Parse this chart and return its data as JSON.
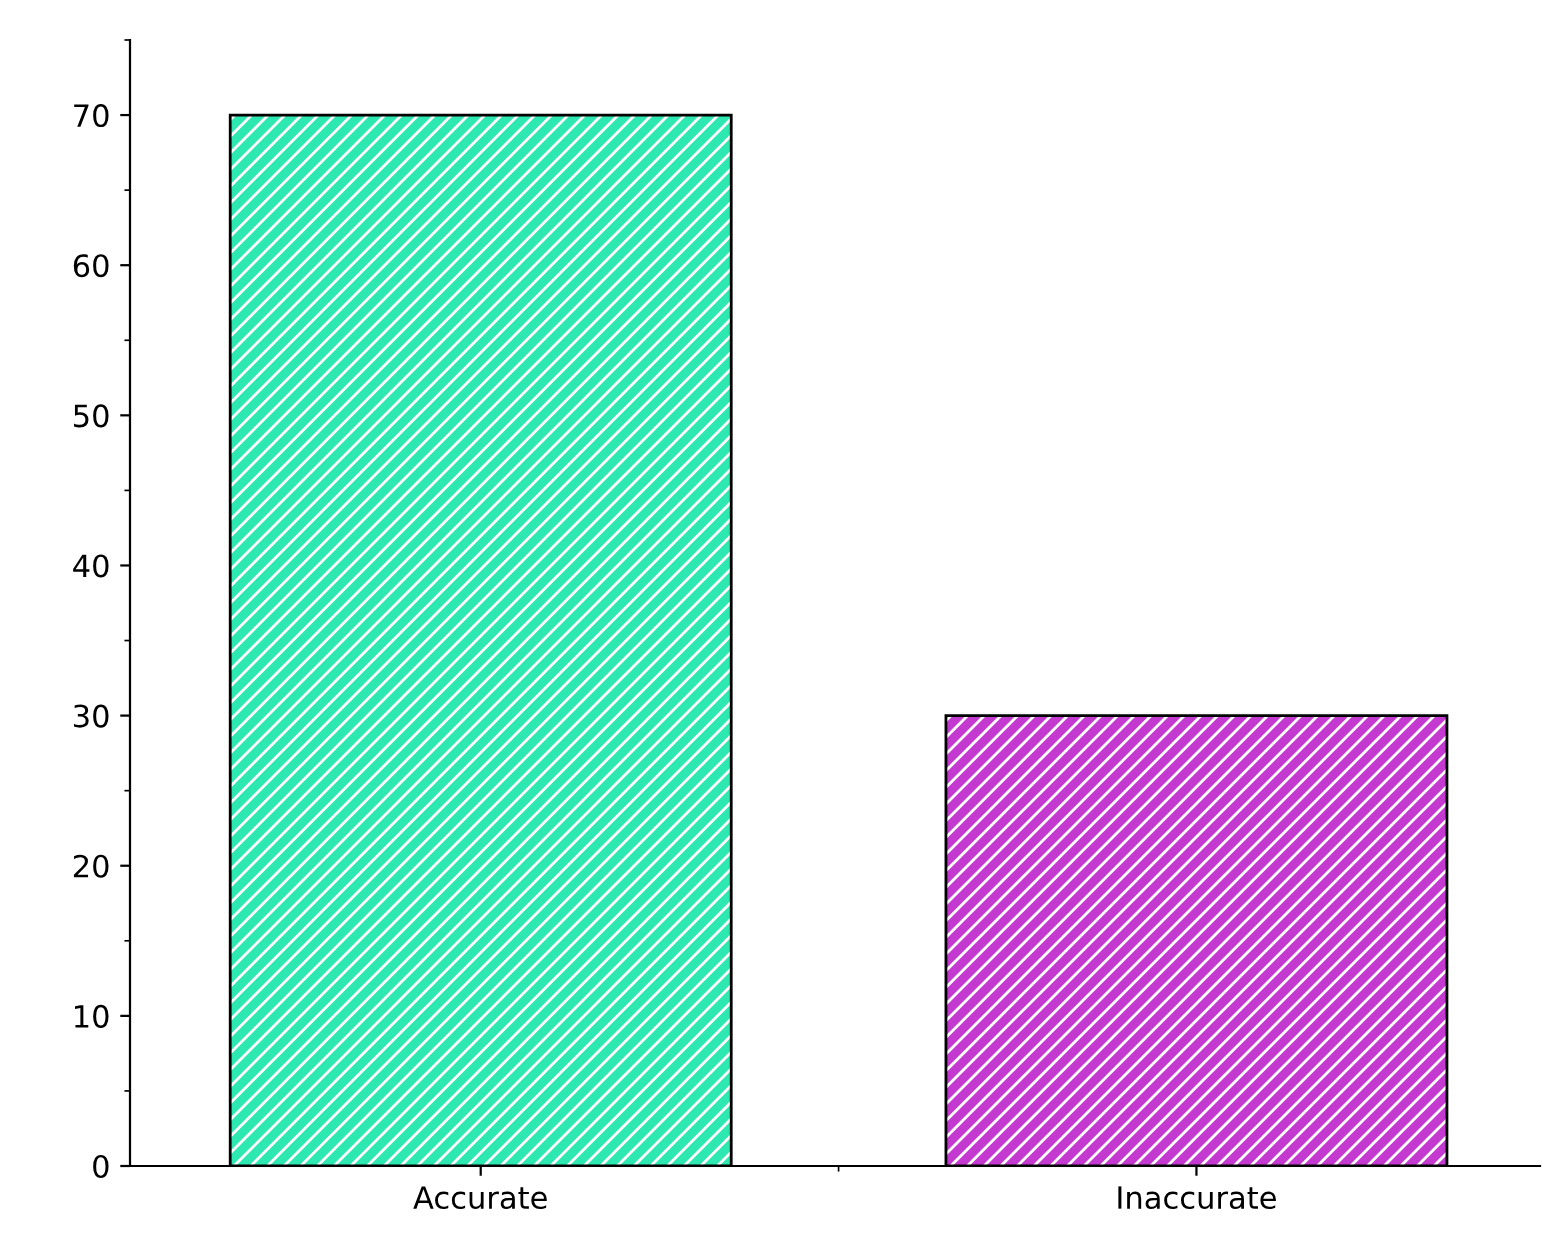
{
  "chart_data": {
    "type": "bar",
    "categories": [
      "Accurate",
      "Inaccurate"
    ],
    "values": [
      70,
      30
    ],
    "colors": [
      "#2ee8b2",
      "#c43ad0"
    ],
    "ylim": [
      0,
      75
    ],
    "yticks": [
      0,
      10,
      20,
      30,
      40,
      50,
      60,
      70
    ],
    "grid": false,
    "legend": false
  }
}
